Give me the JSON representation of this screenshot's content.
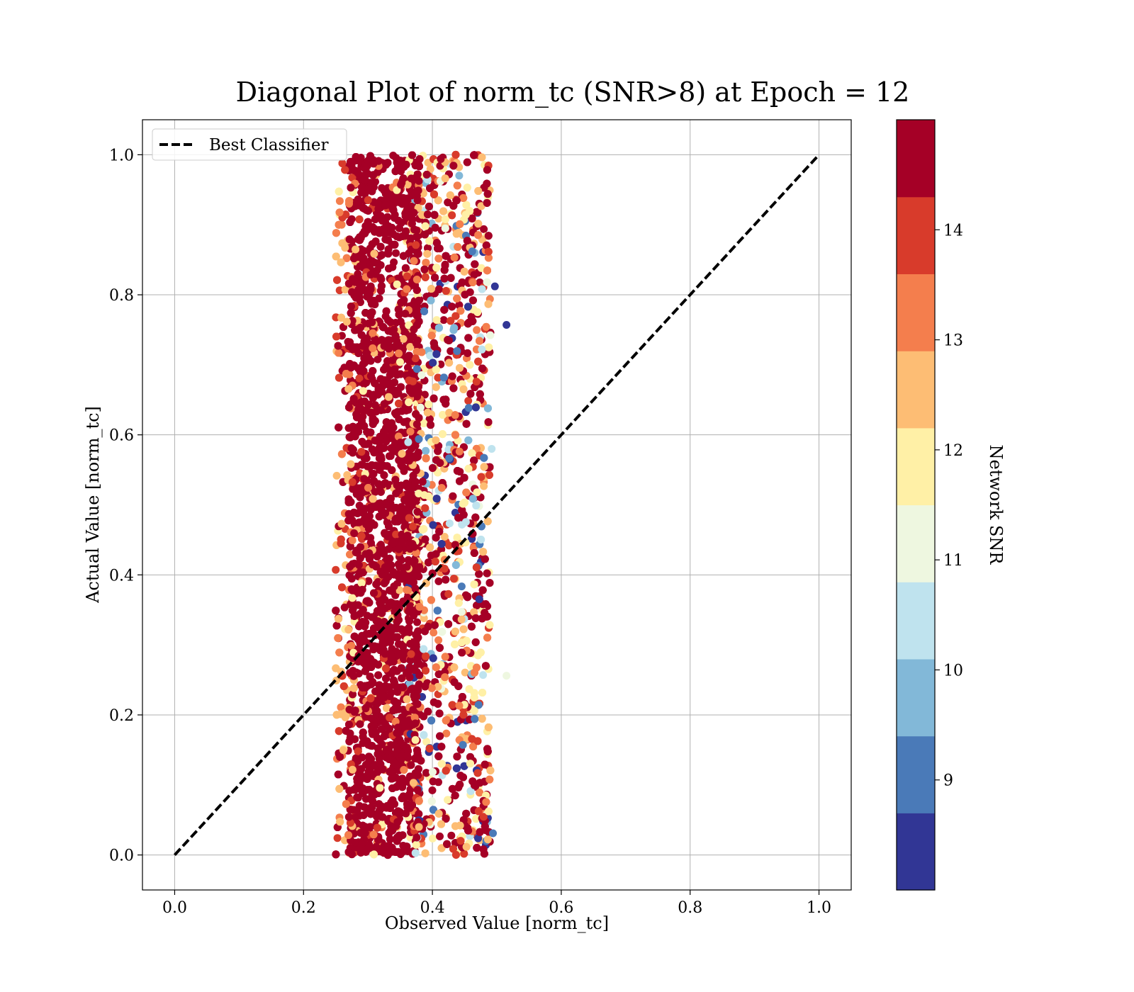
{
  "chart_data": {
    "type": "scatter",
    "title": "Diagonal Plot of norm_tc (SNR>8) at Epoch = 12",
    "xlabel": "Observed Value [norm_tc]",
    "ylabel": "Actual Value [norm_tc]",
    "xlim": [
      -0.05,
      1.05
    ],
    "ylim": [
      -0.05,
      1.05
    ],
    "x_ticks": [
      "0.0",
      "0.2",
      "0.4",
      "0.6",
      "0.8",
      "1.0"
    ],
    "y_ticks": [
      "0.0",
      "0.2",
      "0.4",
      "0.6",
      "0.8",
      "1.0"
    ],
    "grid": true,
    "legend": {
      "placement": "top-left",
      "entries": [
        {
          "label": "Best Classifier",
          "style": "dashed",
          "color": "#000000"
        }
      ]
    },
    "reference_line": {
      "x": [
        0.0,
        1.0
      ],
      "y": [
        0.0,
        1.0
      ]
    },
    "scatter_distribution": {
      "x_range": [
        0.25,
        0.5
      ],
      "y_range": [
        0.0,
        1.0
      ],
      "dense_core_x": [
        0.27,
        0.38
      ]
    },
    "outliers": [
      {
        "x": 0.515,
        "y": 0.757,
        "snr": 8.3
      },
      {
        "x": 0.497,
        "y": 0.812,
        "snr": 8.5
      },
      {
        "x": 0.515,
        "y": 0.256,
        "snr": 11.2
      },
      {
        "x": 0.492,
        "y": 0.58,
        "snr": 10.5
      },
      {
        "x": 0.494,
        "y": 0.031,
        "snr": 9.0
      }
    ],
    "colorbar": {
      "label": "Network SNR",
      "range": [
        8,
        15
      ],
      "ticks": [
        "9",
        "10",
        "11",
        "12",
        "13",
        "14"
      ],
      "tick_values": [
        9,
        10,
        11,
        12,
        13,
        14
      ],
      "boundaries": [
        8,
        8.7,
        9.4,
        10.1,
        10.8,
        11.5,
        12.2,
        12.9,
        13.6,
        14.3,
        15
      ],
      "colors": [
        "#313695",
        "#4a7ab8",
        "#82b8d8",
        "#bfe3ee",
        "#eef7e0",
        "#fff0a6",
        "#fdbd74",
        "#f47e4d",
        "#d83b2b",
        "#a50026"
      ]
    }
  }
}
